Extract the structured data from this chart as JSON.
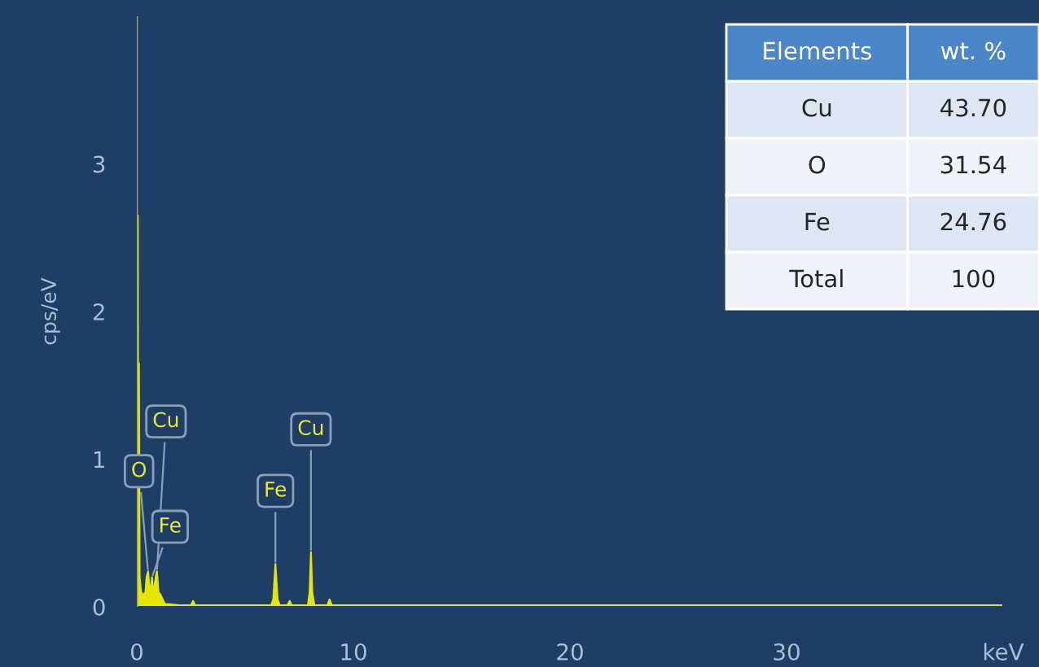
{
  "chart_data": [
    {
      "type": "area",
      "ylabel": "cps/eV",
      "xlim": [
        0,
        40
      ],
      "ylim": [
        0,
        4
      ],
      "xticks": [
        0,
        10,
        20,
        30,
        {
          "value": 40,
          "label": "keV"
        }
      ],
      "yticks": [
        0,
        1,
        2,
        3
      ],
      "series": [
        {
          "color": "#e6e600",
          "x": [
            0,
            0.03,
            0.05,
            0.07,
            0.1,
            0.13,
            0.2,
            0.3,
            0.4,
            0.45,
            0.52,
            0.6,
            0.65,
            0.7,
            0.75,
            0.8,
            0.87,
            0.93,
            1.0,
            1.1,
            1.3,
            2.0,
            2.5,
            2.6,
            2.7,
            3.5,
            6.2,
            6.3,
            6.4,
            6.5,
            6.6,
            6.95,
            7.06,
            7.15,
            7.9,
            7.98,
            8.04,
            8.1,
            8.2,
            8.8,
            8.9,
            9.0,
            10,
            20,
            30,
            40
          ],
          "values": [
            0,
            0.2,
            2.65,
            0.5,
            1.65,
            0.2,
            0.1,
            0.08,
            0.1,
            0.2,
            0.24,
            0.1,
            0.12,
            0.2,
            0.1,
            0.12,
            0.2,
            0.24,
            0.1,
            0.08,
            0.02,
            0.01,
            0.01,
            0.04,
            0.01,
            0.01,
            0.01,
            0.05,
            0.29,
            0.05,
            0.01,
            0.01,
            0.04,
            0.01,
            0.01,
            0.1,
            0.37,
            0.1,
            0.01,
            0.01,
            0.05,
            0.01,
            0.01,
            0.01,
            0.01,
            0.01
          ]
        }
      ],
      "ref_lines": [
        {
          "axis": "x",
          "value": 0,
          "color": "#9aa86a"
        }
      ],
      "annotations": [
        {
          "text": "Cu",
          "x": 0.93,
          "y": 0.24
        },
        {
          "text": "O",
          "x": 0.52,
          "y": 0.24
        },
        {
          "text": "Fe",
          "x": 0.7,
          "y": 0.2
        },
        {
          "text": "Fe",
          "x": 6.4,
          "y": 0.29
        },
        {
          "text": "Cu",
          "x": 8.04,
          "y": 0.37
        }
      ]
    },
    {
      "type": "other",
      "annotations": [
        "Elements",
        "wt. %",
        "Cu",
        "43.70",
        "O",
        "31.54",
        "Fe",
        "24.76",
        "Total",
        "100"
      ]
    }
  ]
}
